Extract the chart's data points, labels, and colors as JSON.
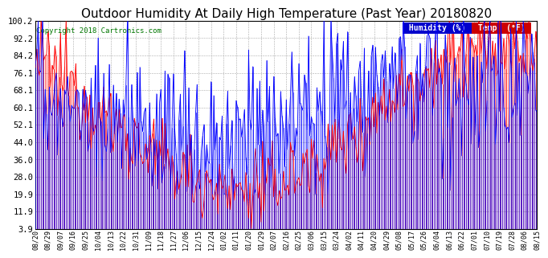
{
  "title": "Outdoor Humidity At Daily High Temperature (Past Year) 20180820",
  "copyright": "Copyright 2018 Cartronics.com",
  "yticks": [
    3.9,
    11.9,
    19.9,
    28.0,
    36.0,
    44.0,
    52.1,
    60.1,
    68.1,
    76.1,
    84.2,
    92.2,
    100.2
  ],
  "ymin": 3.9,
  "ymax": 100.2,
  "humidity_color": "#0000ff",
  "temp_color": "#ff0000",
  "background_color": "#ffffff",
  "grid_color": "#aaaaaa",
  "title_fontsize": 11,
  "legend_humidity_bg": "#0000cc",
  "legend_temp_bg": "#cc0000",
  "x_labels": [
    "08/20",
    "08/29",
    "09/07",
    "09/16",
    "09/25",
    "10/04",
    "10/13",
    "10/22",
    "10/31",
    "11/09",
    "11/18",
    "11/27",
    "12/06",
    "12/15",
    "12/24",
    "01/02",
    "01/11",
    "01/20",
    "01/29",
    "02/07",
    "02/16",
    "02/25",
    "03/06",
    "03/15",
    "03/24",
    "04/02",
    "04/11",
    "04/20",
    "04/29",
    "05/08",
    "05/17",
    "05/26",
    "06/04",
    "06/13",
    "06/22",
    "07/01",
    "07/10",
    "07/19",
    "07/28",
    "08/06",
    "08/15"
  ]
}
